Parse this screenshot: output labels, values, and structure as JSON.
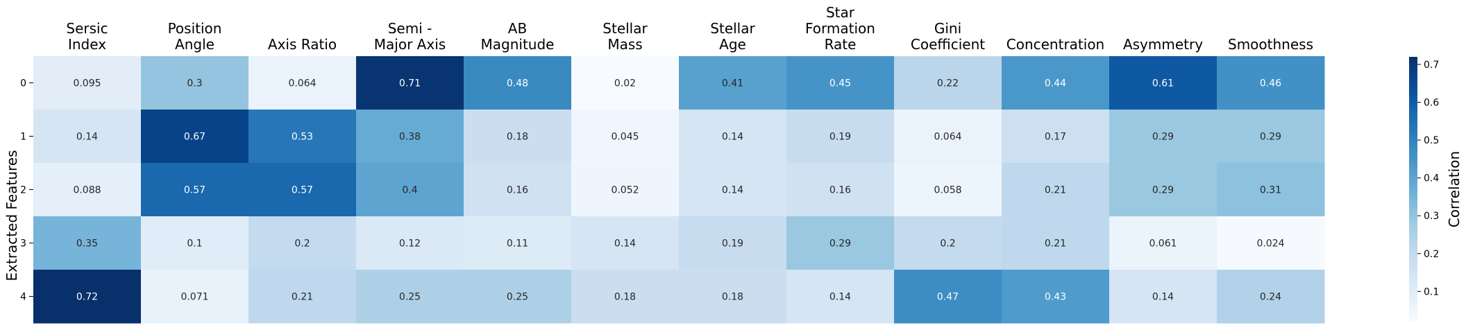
{
  "chart_data": {
    "type": "heatmap",
    "title": "",
    "xlabel": "",
    "ylabel": "Extracted Features",
    "columns": [
      [
        "Sersic",
        "Index"
      ],
      [
        "Position",
        "Angle"
      ],
      [
        "Axis Ratio"
      ],
      [
        "Semi -",
        "Major Axis"
      ],
      [
        "AB",
        "Magnitude"
      ],
      [
        "Stellar",
        "Mass"
      ],
      [
        "Stellar",
        "Age"
      ],
      [
        "Star",
        "Formation",
        "Rate"
      ],
      [
        "Gini",
        "Coefficient"
      ],
      [
        "Concentration"
      ],
      [
        "Asymmetry"
      ],
      [
        "Smoothness"
      ]
    ],
    "rows": [
      "0",
      "1",
      "2",
      "3",
      "4"
    ],
    "values": [
      [
        0.095,
        0.3,
        0.064,
        0.71,
        0.48,
        0.02,
        0.41,
        0.45,
        0.22,
        0.44,
        0.61,
        0.46
      ],
      [
        0.14,
        0.67,
        0.53,
        0.38,
        0.18,
        0.045,
        0.14,
        0.19,
        0.064,
        0.17,
        0.29,
        0.29
      ],
      [
        0.088,
        0.57,
        0.57,
        0.4,
        0.16,
        0.052,
        0.14,
        0.16,
        0.058,
        0.21,
        0.29,
        0.31
      ],
      [
        0.35,
        0.1,
        0.2,
        0.12,
        0.11,
        0.14,
        0.19,
        0.29,
        0.2,
        0.21,
        0.061,
        0.024
      ],
      [
        0.72,
        0.071,
        0.21,
        0.25,
        0.25,
        0.18,
        0.18,
        0.14,
        0.47,
        0.43,
        0.14,
        0.24
      ]
    ],
    "colormap": "Blues",
    "colorbar": {
      "label": "Correlation",
      "range": [
        0.02,
        0.72
      ],
      "ticks": [
        0.1,
        0.2,
        0.3,
        0.4,
        0.5,
        0.6,
        0.7
      ],
      "tick_labels": [
        "0.1",
        "0.2",
        "0.3",
        "0.4",
        "0.5",
        "0.6",
        "0.7"
      ]
    },
    "annotations": true,
    "grid": false
  }
}
